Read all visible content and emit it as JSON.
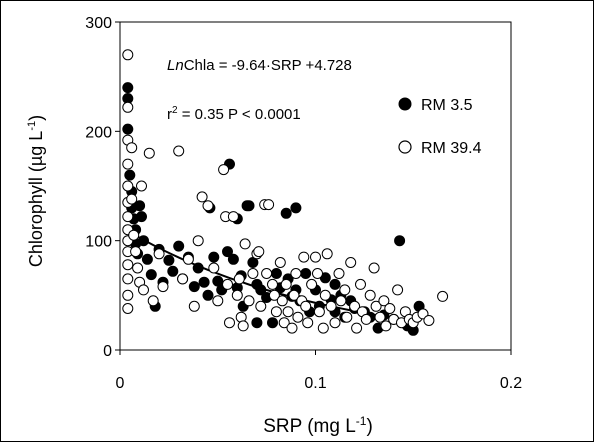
{
  "chart_data": {
    "type": "scatter",
    "xlabel": "SRP (mg L",
    "xlabel_sup": "-1",
    "xlabel_end": ")",
    "ylabel": "Chlorophyll (µg L",
    "ylabel_sup": "-1",
    "ylabel_end": ")",
    "xlim": [
      0,
      0.2
    ],
    "ylim": [
      0,
      300
    ],
    "x_ticks": [
      0,
      0.1,
      0.2
    ],
    "x_tick_labels": [
      "0",
      "0.1",
      "0.2"
    ],
    "y_ticks": [
      0,
      100,
      200,
      300
    ],
    "y_tick_labels": [
      "0",
      "100",
      "200",
      "300"
    ],
    "grid": false,
    "legend_position": "top-right",
    "annotations": {
      "equation_italic": "Ln",
      "equation_rest": "Chla = -9.64·SRP +4.728",
      "r2_prefix": "r",
      "r2_sup": "2",
      "r2_rest": " = 0.35 P < 0.0001"
    },
    "fit": {
      "intercept_ln": 4.728,
      "slope_ln": -9.64,
      "x_range": [
        0.005,
        0.15
      ]
    },
    "series": [
      {
        "name": "RM 3.5",
        "fill": "#000000",
        "points": [
          [
            0.004,
            240
          ],
          [
            0.004,
            230
          ],
          [
            0.004,
            202
          ],
          [
            0.005,
            160
          ],
          [
            0.006,
            145
          ],
          [
            0.006,
            130
          ],
          [
            0.007,
            120
          ],
          [
            0.008,
            110
          ],
          [
            0.008,
            97
          ],
          [
            0.009,
            88
          ],
          [
            0.01,
            132
          ],
          [
            0.011,
            122
          ],
          [
            0.012,
            100
          ],
          [
            0.014,
            83
          ],
          [
            0.016,
            69
          ],
          [
            0.02,
            92
          ],
          [
            0.022,
            62
          ],
          [
            0.025,
            82
          ],
          [
            0.027,
            72
          ],
          [
            0.03,
            95
          ],
          [
            0.032,
            65
          ],
          [
            0.035,
            85
          ],
          [
            0.038,
            58
          ],
          [
            0.04,
            75
          ],
          [
            0.043,
            62
          ],
          [
            0.045,
            50
          ],
          [
            0.048,
            85
          ],
          [
            0.05,
            63
          ],
          [
            0.052,
            55
          ],
          [
            0.055,
            90
          ],
          [
            0.056,
            170
          ],
          [
            0.058,
            83
          ],
          [
            0.06,
            57
          ],
          [
            0.062,
            68
          ],
          [
            0.063,
            40
          ],
          [
            0.065,
            132
          ],
          [
            0.066,
            132
          ],
          [
            0.068,
            80
          ],
          [
            0.07,
            60
          ],
          [
            0.072,
            55
          ],
          [
            0.075,
            48
          ],
          [
            0.078,
            25
          ],
          [
            0.08,
            70
          ],
          [
            0.082,
            57
          ],
          [
            0.085,
            125
          ],
          [
            0.086,
            65
          ],
          [
            0.088,
            49
          ],
          [
            0.09,
            130
          ],
          [
            0.092,
            45
          ],
          [
            0.095,
            70
          ],
          [
            0.097,
            35
          ],
          [
            0.1,
            55
          ],
          [
            0.102,
            40
          ],
          [
            0.105,
            66
          ],
          [
            0.108,
            46
          ],
          [
            0.11,
            35
          ],
          [
            0.113,
            50
          ],
          [
            0.115,
            30
          ],
          [
            0.118,
            45
          ],
          [
            0.12,
            38
          ],
          [
            0.125,
            35
          ],
          [
            0.128,
            30
          ],
          [
            0.132,
            20
          ],
          [
            0.135,
            32
          ],
          [
            0.14,
            28
          ],
          [
            0.143,
            100
          ],
          [
            0.147,
            22
          ],
          [
            0.15,
            18
          ],
          [
            0.153,
            40
          ],
          [
            0.06,
            120
          ],
          [
            0.046,
            130
          ],
          [
            0.018,
            40
          ],
          [
            0.07,
            25
          ],
          [
            0.09,
            55
          ],
          [
            0.11,
            60
          ]
        ]
      },
      {
        "name": "RM 39.4",
        "fill": "#ffffff",
        "points": [
          [
            0.004,
            270
          ],
          [
            0.004,
            222
          ],
          [
            0.004,
            192
          ],
          [
            0.004,
            170
          ],
          [
            0.004,
            150
          ],
          [
            0.004,
            135
          ],
          [
            0.004,
            122
          ],
          [
            0.004,
            110
          ],
          [
            0.004,
            100
          ],
          [
            0.004,
            90
          ],
          [
            0.004,
            78
          ],
          [
            0.004,
            65
          ],
          [
            0.004,
            50
          ],
          [
            0.004,
            38
          ],
          [
            0.006,
            185
          ],
          [
            0.006,
            138
          ],
          [
            0.007,
            105
          ],
          [
            0.008,
            90
          ],
          [
            0.009,
            75
          ],
          [
            0.01,
            62
          ],
          [
            0.011,
            150
          ],
          [
            0.012,
            55
          ],
          [
            0.015,
            180
          ],
          [
            0.017,
            45
          ],
          [
            0.02,
            88
          ],
          [
            0.022,
            58
          ],
          [
            0.03,
            182
          ],
          [
            0.032,
            65
          ],
          [
            0.035,
            83
          ],
          [
            0.038,
            40
          ],
          [
            0.04,
            100
          ],
          [
            0.042,
            140
          ],
          [
            0.045,
            132
          ],
          [
            0.048,
            75
          ],
          [
            0.05,
            45
          ],
          [
            0.053,
            165
          ],
          [
            0.054,
            122
          ],
          [
            0.055,
            60
          ],
          [
            0.056,
            25
          ],
          [
            0.058,
            122
          ],
          [
            0.06,
            50
          ],
          [
            0.061,
            65
          ],
          [
            0.062,
            30
          ],
          [
            0.063,
            22
          ],
          [
            0.064,
            97
          ],
          [
            0.066,
            45
          ],
          [
            0.068,
            70
          ],
          [
            0.07,
            88
          ],
          [
            0.071,
            90
          ],
          [
            0.072,
            40
          ],
          [
            0.074,
            133
          ],
          [
            0.075,
            70
          ],
          [
            0.076,
            133
          ],
          [
            0.078,
            60
          ],
          [
            0.079,
            50
          ],
          [
            0.08,
            35
          ],
          [
            0.082,
            80
          ],
          [
            0.083,
            45
          ],
          [
            0.084,
            25
          ],
          [
            0.085,
            60
          ],
          [
            0.086,
            35
          ],
          [
            0.088,
            20
          ],
          [
            0.089,
            50
          ],
          [
            0.09,
            70
          ],
          [
            0.091,
            30
          ],
          [
            0.093,
            45
          ],
          [
            0.094,
            85
          ],
          [
            0.095,
            40
          ],
          [
            0.096,
            25
          ],
          [
            0.098,
            60
          ],
          [
            0.1,
            85
          ],
          [
            0.101,
            70
          ],
          [
            0.102,
            35
          ],
          [
            0.104,
            20
          ],
          [
            0.105,
            50
          ],
          [
            0.106,
            88
          ],
          [
            0.108,
            40
          ],
          [
            0.11,
            25
          ],
          [
            0.112,
            70
          ],
          [
            0.113,
            45
          ],
          [
            0.115,
            55
          ],
          [
            0.116,
            30
          ],
          [
            0.118,
            80
          ],
          [
            0.12,
            40
          ],
          [
            0.121,
            20
          ],
          [
            0.123,
            60
          ],
          [
            0.124,
            35
          ],
          [
            0.126,
            28
          ],
          [
            0.128,
            50
          ],
          [
            0.13,
            75
          ],
          [
            0.131,
            40
          ],
          [
            0.133,
            30
          ],
          [
            0.135,
            45
          ],
          [
            0.136,
            22
          ],
          [
            0.138,
            38
          ],
          [
            0.14,
            28
          ],
          [
            0.142,
            55
          ],
          [
            0.144,
            25
          ],
          [
            0.146,
            35
          ],
          [
            0.148,
            28
          ],
          [
            0.15,
            25
          ],
          [
            0.152,
            30
          ],
          [
            0.155,
            33
          ],
          [
            0.158,
            27
          ],
          [
            0.165,
            49
          ]
        ]
      }
    ]
  }
}
